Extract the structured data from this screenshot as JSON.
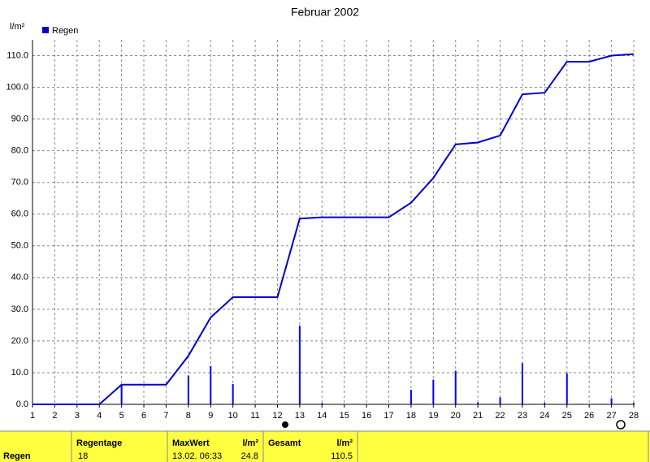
{
  "chart_data": {
    "type": "combo",
    "title": "Februar 2002",
    "y_label": "l/m²",
    "x": [
      1,
      2,
      3,
      4,
      5,
      6,
      7,
      8,
      9,
      10,
      11,
      12,
      13,
      14,
      15,
      16,
      17,
      18,
      19,
      20,
      21,
      22,
      23,
      24,
      25,
      26,
      27,
      28
    ],
    "xlim": [
      1,
      28
    ],
    "xticks": [
      1,
      2,
      3,
      4,
      5,
      6,
      7,
      8,
      9,
      10,
      11,
      12,
      13,
      14,
      15,
      16,
      17,
      18,
      19,
      20,
      21,
      22,
      23,
      24,
      25,
      26,
      27,
      28
    ],
    "ylim": [
      0,
      115
    ],
    "yticks": [
      {
        "value": 0,
        "label": "0.0"
      },
      {
        "value": 10,
        "label": "10.0"
      },
      {
        "value": 20,
        "label": "20.0"
      },
      {
        "value": 30,
        "label": "30.0"
      },
      {
        "value": 40,
        "label": "40.0"
      },
      {
        "value": 50,
        "label": "50.0"
      },
      {
        "value": 60,
        "label": "60.0"
      },
      {
        "value": 70,
        "label": "70.0"
      },
      {
        "value": 80,
        "label": "80.0"
      },
      {
        "value": 90,
        "label": "90.0"
      },
      {
        "value": 100,
        "label": "100.0"
      },
      {
        "value": 110,
        "label": "110.0"
      }
    ],
    "grid": true,
    "series": [
      {
        "name": "Regen",
        "type": "bar",
        "color": "#0000ff",
        "values": [
          0,
          0,
          0,
          0,
          6.2,
          0,
          0,
          9.1,
          12.1,
          6.4,
          0,
          0,
          24.8,
          0.4,
          0,
          0,
          0,
          4.6,
          7.8,
          10.6,
          0.6,
          2.2,
          13.0,
          0.5,
          9.8,
          0,
          1.9,
          0.5
        ]
      },
      {
        "type": "line",
        "color": "#0000cc",
        "values": [
          0,
          0,
          0,
          0,
          6.2,
          6.2,
          6.2,
          15.3,
          27.4,
          33.8,
          33.8,
          33.8,
          58.6,
          59.0,
          59.0,
          59.0,
          59.0,
          63.6,
          71.4,
          82.0,
          82.6,
          84.8,
          97.8,
          98.3,
          108.1,
          108.1,
          110.0,
          110.5
        ]
      }
    ]
  },
  "table": {
    "row_label": "Regen",
    "cells": [
      {
        "header": "Regentage",
        "value": "18"
      },
      {
        "header": "MaxWert",
        "value": "13.02.  06:33",
        "unit": "l/m²",
        "unit_value": "24.8"
      },
      {
        "header": "Gesamt",
        "unit": "l/m²",
        "unit_value": "110.5"
      }
    ]
  }
}
